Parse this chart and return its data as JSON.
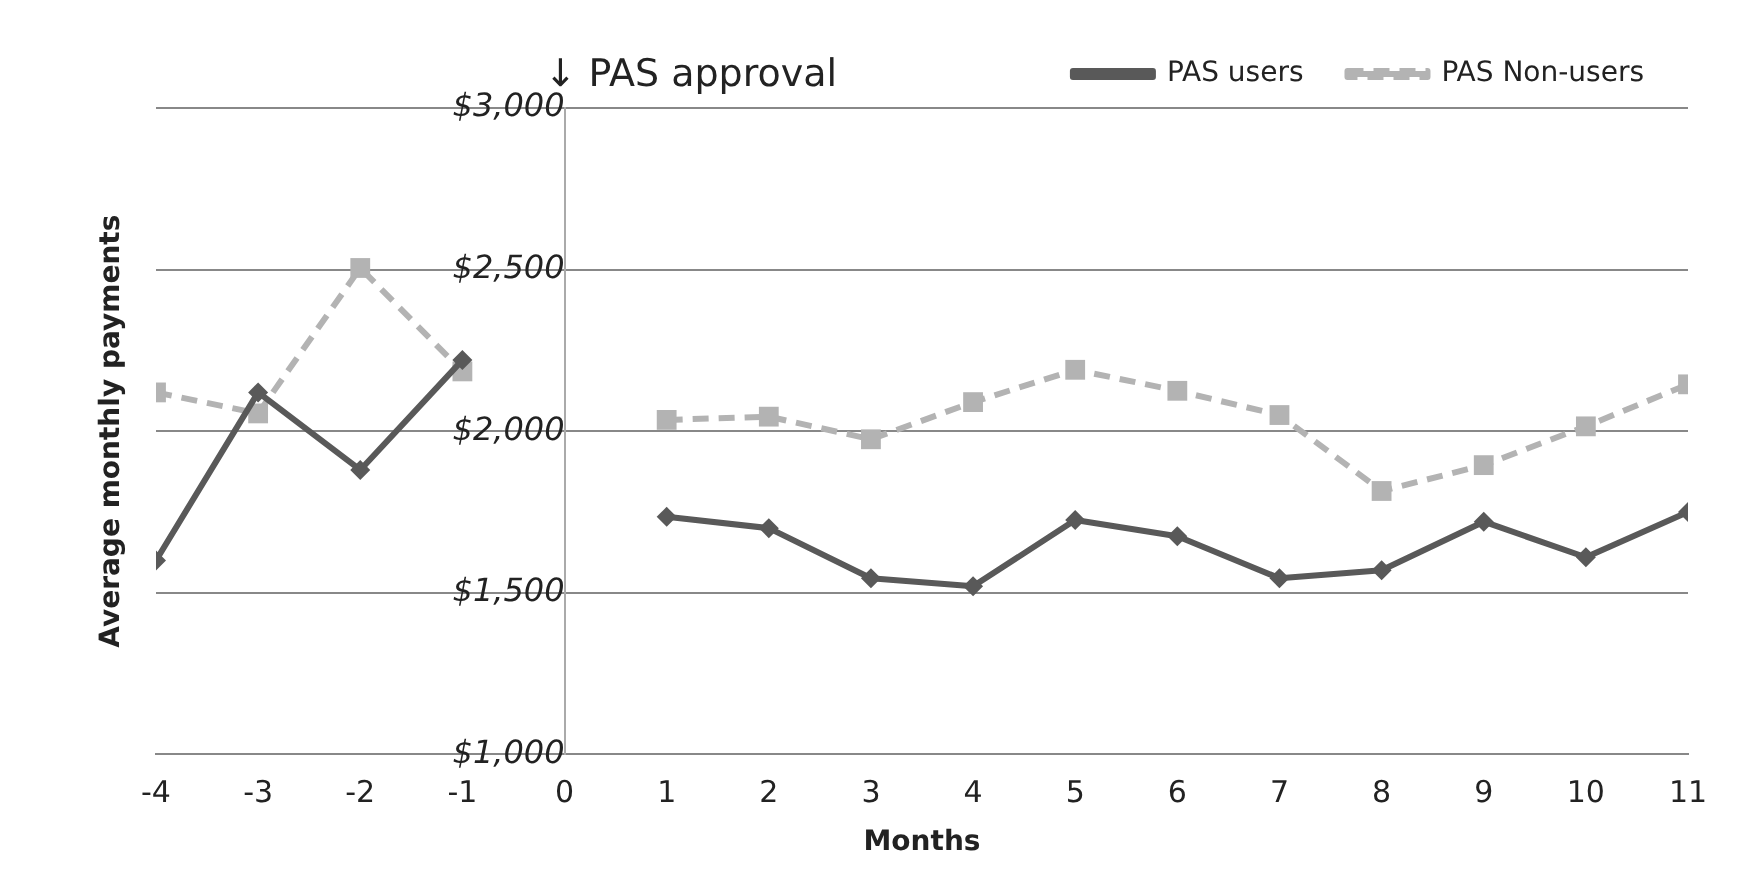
{
  "chart_data": {
    "type": "line",
    "xlabel": "Months",
    "ylabel": "Average monthly payments",
    "annotations": [
      "↓ PAS approval"
    ],
    "x": [
      -4,
      -3,
      -2,
      -1,
      0,
      1,
      2,
      3,
      4,
      5,
      6,
      7,
      8,
      9,
      10,
      11
    ],
    "series": [
      {
        "name": "PAS users",
        "color": "#595959",
        "marker": "diamond",
        "line_style": "solid",
        "values": [
          1600,
          2120,
          1880,
          2220,
          null,
          1735,
          1700,
          1545,
          1520,
          1725,
          1675,
          1545,
          1570,
          1720,
          1610,
          1750
        ]
      },
      {
        "name": "PAS Non-users",
        "color": "#b3b3b3",
        "marker": "square",
        "line_style": "dashed",
        "values": [
          2120,
          2055,
          2505,
          2185,
          null,
          2035,
          2045,
          1975,
          2090,
          2190,
          2125,
          2050,
          1815,
          1895,
          2015,
          2145
        ]
      }
    ],
    "xlim": [
      -4,
      11
    ],
    "xticks": [
      -4,
      -3,
      -2,
      -1,
      0,
      1,
      2,
      3,
      4,
      5,
      6,
      7,
      8,
      9,
      10,
      11
    ],
    "ylim": [
      1000,
      3000
    ],
    "yticks": [
      {
        "value": 1000,
        "label": "$1,000"
      },
      {
        "value": 1500,
        "label": "$1,500"
      },
      {
        "value": 2000,
        "label": "$2,000"
      },
      {
        "value": 2500,
        "label": "$2,500"
      },
      {
        "value": 3000,
        "label": "$3,000"
      }
    ],
    "grid": "y",
    "legend": "top right"
  }
}
